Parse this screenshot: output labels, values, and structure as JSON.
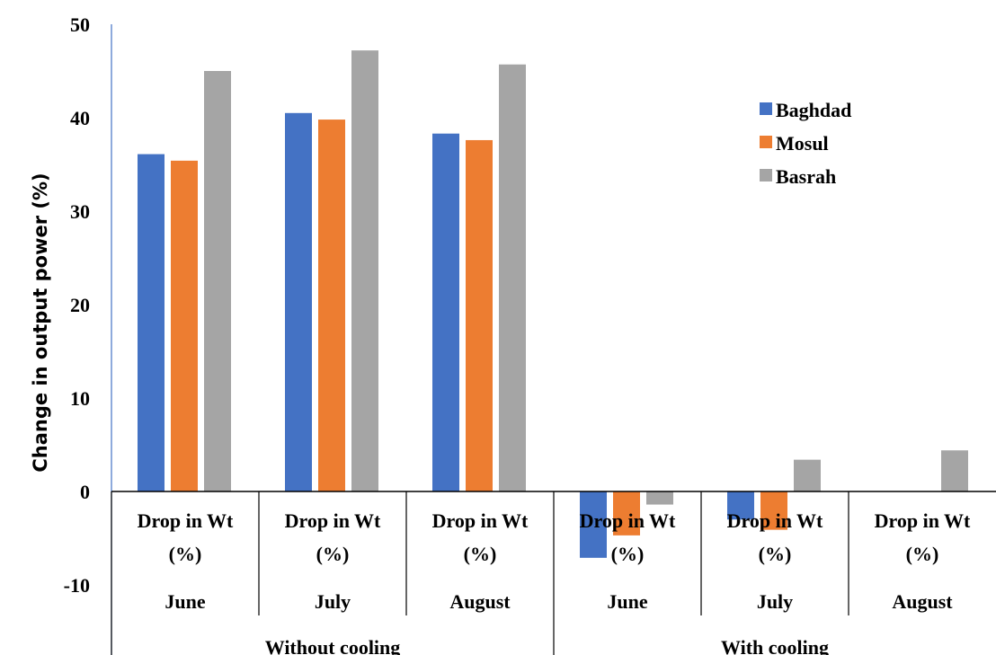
{
  "chart_data": {
    "type": "bar",
    "ylabel": "Change in output power (%)",
    "ylim": [
      -10,
      50
    ],
    "yticks": [
      "50",
      "40",
      "30",
      "20",
      "10",
      "0",
      "-10"
    ],
    "grid": false,
    "legend_position": "top-right",
    "categories": [
      {
        "label_line1": "Drop in Wt",
        "label_line2": "(%)",
        "month": "June",
        "group": "Without cooling"
      },
      {
        "label_line1": "Drop in Wt",
        "label_line2": "(%)",
        "month": "July",
        "group": "Without cooling"
      },
      {
        "label_line1": "Drop in Wt",
        "label_line2": "(%)",
        "month": "August",
        "group": "Without cooling"
      },
      {
        "label_line1": "Drop in Wt",
        "label_line2": "(%)",
        "month": "June",
        "group": "With cooling"
      },
      {
        "label_line1": "Drop in Wt",
        "label_line2": "(%)",
        "month": "July",
        "group": "With cooling"
      },
      {
        "label_line1": "Drop in Wt",
        "label_line2": "(%)",
        "month": "August",
        "group": "With cooling"
      }
    ],
    "groups": [
      "Without cooling",
      "With cooling"
    ],
    "series": [
      {
        "name": "Baghdad",
        "color": "#4472C4",
        "values": [
          36.1,
          40.5,
          38.3,
          -7.1,
          -3.0,
          0
        ]
      },
      {
        "name": "Mosul",
        "color": "#ED7D31",
        "values": [
          35.4,
          39.8,
          37.6,
          -4.7,
          -4.1,
          0
        ]
      },
      {
        "name": "Basrah",
        "color": "#A5A5A5",
        "values": [
          45.0,
          47.2,
          45.7,
          -1.4,
          3.4,
          4.4
        ]
      }
    ]
  }
}
